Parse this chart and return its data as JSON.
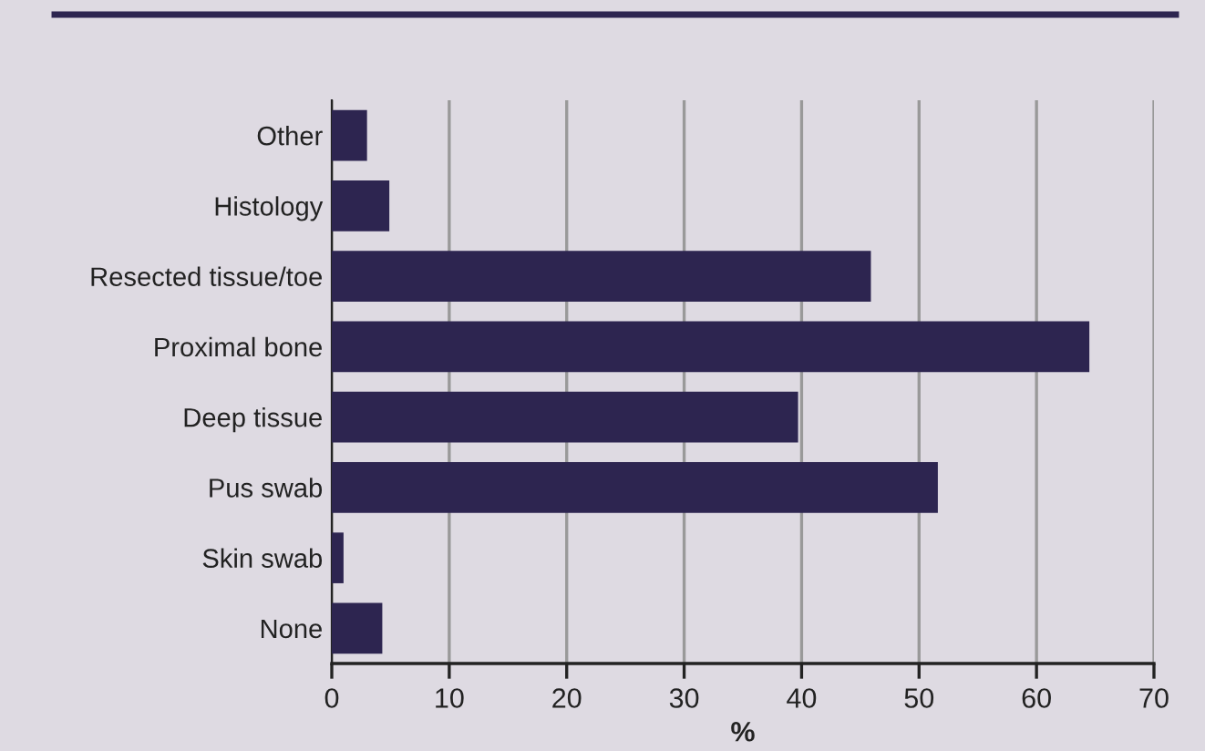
{
  "chart_data": {
    "type": "bar",
    "orientation": "horizontal",
    "xlabel": "%",
    "categories": [
      "Other",
      "Histology",
      "Resected tissue/toe",
      "Proximal bone",
      "Deep tissue",
      "Pus swab",
      "Skin swab",
      "None"
    ],
    "values": [
      3.0,
      4.9,
      45.9,
      64.5,
      39.7,
      51.6,
      1.0,
      4.3
    ],
    "color": "#2d2550",
    "xlim": [
      0,
      70
    ],
    "xticks": [
      0,
      10,
      20,
      30,
      40,
      50,
      60,
      70
    ],
    "grid": "x"
  }
}
